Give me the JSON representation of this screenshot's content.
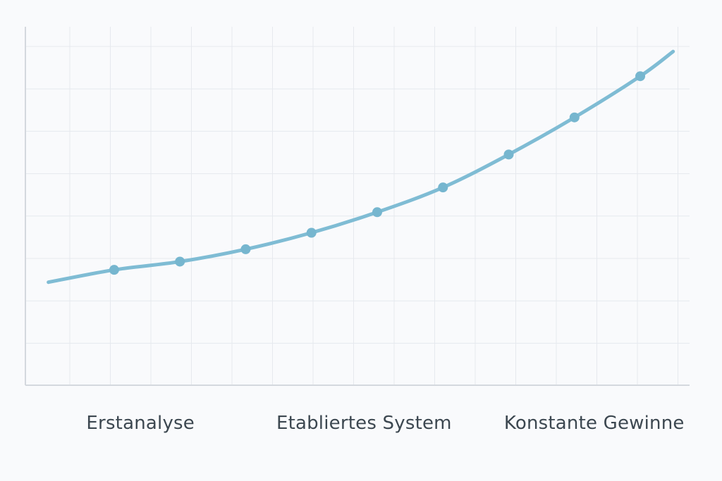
{
  "chart_data": {
    "type": "line",
    "title": "",
    "xlabel": "",
    "ylabel": "",
    "grid": true,
    "colors": {
      "line": "#7fbcd4",
      "point": "#76b6cf",
      "grid": "#e6e9ee",
      "axis": "#d4d8de",
      "label": "#3c4750",
      "background": "#f9fafc"
    },
    "categories": [
      "Erstanalyse",
      "Etabliertes System",
      "Konstante Gewinne"
    ],
    "x": [
      0.0,
      1.0,
      2.0,
      3.0,
      4.0,
      5.0,
      6.0,
      7.0,
      8.0,
      9.0,
      9.5
    ],
    "values": [
      2.0,
      2.3,
      2.5,
      2.8,
      3.2,
      3.7,
      4.3,
      5.1,
      6.0,
      7.0,
      7.6
    ],
    "markers": [
      false,
      true,
      true,
      true,
      true,
      true,
      true,
      true,
      true,
      true,
      false
    ],
    "xlim": [
      -0.35,
      9.75
    ],
    "ylim": [
      -0.5,
      8.2
    ],
    "category_positions": [
      1.4,
      4.8,
      8.3
    ]
  }
}
